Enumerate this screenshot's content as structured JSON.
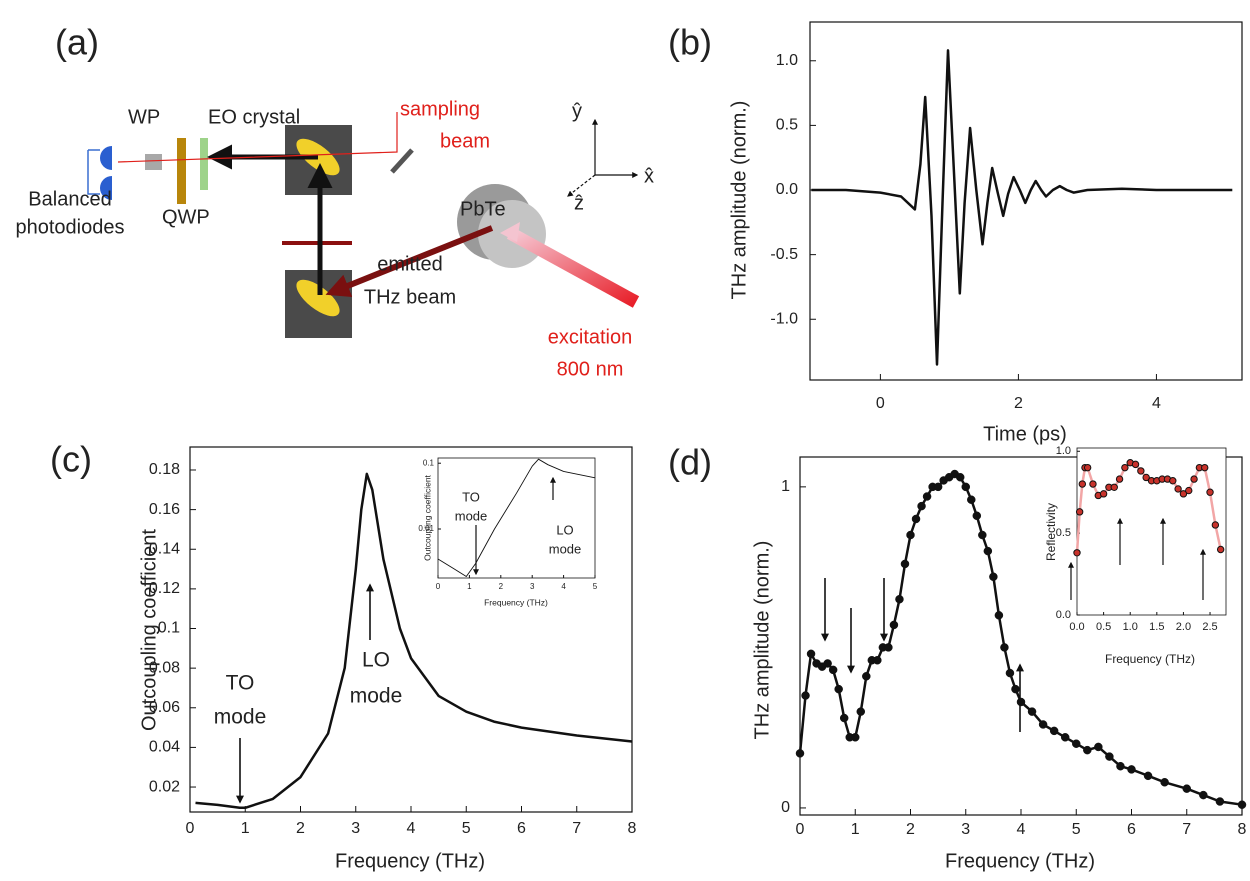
{
  "panel_labels": [
    "(a)",
    "(b)",
    "(c)",
    "(d)"
  ],
  "diagram": {
    "labels": [
      "WP",
      "EO crystal",
      "sampling",
      "beam",
      "Balanced",
      "photodiodes",
      "QWP",
      "PbTe",
      "emitted",
      "THz beam",
      "excitation",
      "800 nm",
      "ŷ",
      "x̂",
      "ẑ"
    ]
  },
  "chart_data": [
    {
      "type": "line",
      "x_label": "Time (ps)",
      "y_label": "THz amplitude (norm.)",
      "color": "#111111",
      "markers": false,
      "x": [
        -1,
        -0.5,
        0,
        0.3,
        0.5,
        0.58,
        0.65,
        0.74,
        0.82,
        0.9,
        0.98,
        1.07,
        1.15,
        1.22,
        1.3,
        1.39,
        1.48,
        1.55,
        1.62,
        1.7,
        1.78,
        1.85,
        1.93,
        2.02,
        2.1,
        2.18,
        2.25,
        2.33,
        2.4,
        2.5,
        2.6,
        2.7,
        2.8,
        3.0,
        3.5,
        4,
        4.5,
        5,
        5.1
      ],
      "values": [
        0,
        0,
        -0.02,
        -0.05,
        -0.15,
        0.2,
        0.72,
        -0.2,
        -1.35,
        -0.1,
        1.08,
        0.1,
        -0.8,
        -0.1,
        0.48,
        0,
        -0.42,
        -0.1,
        0.17,
        -0.02,
        -0.2,
        -0.03,
        0.1,
        0,
        -0.1,
        0,
        0.07,
        0,
        -0.05,
        0,
        0.03,
        0,
        -0.02,
        0,
        0.01,
        0,
        0,
        0,
        0
      ],
      "xlim": [
        -1.02,
        5.24
      ],
      "ylim": [
        -1.47,
        1.3
      ],
      "xticks": [
        0,
        2,
        4
      ],
      "yticks": [
        {
          "value": -1.0,
          "label": "-1.0"
        },
        -0.5,
        {
          "value": 0.0,
          "label": "0.0"
        },
        0.5,
        {
          "value": 1.0,
          "label": "1.0"
        }
      ]
    },
    {
      "type": "line",
      "x_label": "Frequency (THz)",
      "y_label": "Outcoupling coefficient",
      "color": "#111111",
      "markers": false,
      "x": [
        0.1,
        0.5,
        0.9,
        1.0,
        1.5,
        2,
        2.5,
        2.8,
        3.0,
        3.1,
        3.2,
        3.3,
        3.5,
        3.8,
        4,
        4.5,
        5,
        5.5,
        6,
        7,
        8
      ],
      "values": [
        0.012,
        0.011,
        0.0095,
        0.0095,
        0.014,
        0.025,
        0.047,
        0.08,
        0.13,
        0.16,
        0.178,
        0.17,
        0.135,
        0.1,
        0.085,
        0.066,
        0.058,
        0.053,
        0.05,
        0.046,
        0.043
      ],
      "xlim": [
        0,
        8
      ],
      "ylim": [
        0.0074,
        0.1916
      ],
      "xticks": [
        0,
        1,
        2,
        3,
        4,
        5,
        6,
        7,
        8
      ],
      "yticks": [
        0.02,
        0.04,
        0.06,
        0.08,
        0.1,
        0.12,
        0.14,
        0.16,
        0.18
      ],
      "annotations": [
        "TO",
        "mode",
        "LO",
        "mode"
      ]
    },
    {
      "type": "line",
      "x_label": "Frequency (THz)",
      "y_label": "Outcoupling coefficient",
      "color": "#111111",
      "markers": false,
      "log_y": true,
      "x": [
        0,
        0.5,
        0.9,
        1.2,
        1.8,
        2.5,
        3.0,
        3.2,
        3.5,
        4,
        5
      ],
      "values": [
        0.0035,
        0.0025,
        0.0019,
        0.003,
        0.01,
        0.035,
        0.09,
        0.115,
        0.095,
        0.075,
        0.06
      ],
      "xlim": [
        0,
        5
      ],
      "ylim": [
        0.0018,
        0.12
      ],
      "xticks": [
        0,
        1,
        2,
        3,
        4,
        5
      ],
      "yticks": [
        0.01,
        0.1
      ],
      "annotations": [
        "TO",
        "mode",
        "LO",
        "mode"
      ]
    },
    {
      "type": "line",
      "x_label": "Frequency (THz)",
      "y_label": "THz amplitude (norm.)",
      "color": "#111111",
      "markers": true,
      "marker_color": "#111111",
      "x": [
        0,
        0.1,
        0.2,
        0.3,
        0.4,
        0.5,
        0.6,
        0.7,
        0.8,
        0.9,
        1.0,
        1.1,
        1.2,
        1.3,
        1.4,
        1.5,
        1.6,
        1.7,
        1.8,
        1.9,
        2.0,
        2.1,
        2.2,
        2.3,
        2.4,
        2.5,
        2.6,
        2.7,
        2.8,
        2.9,
        3.0,
        3.1,
        3.2,
        3.3,
        3.4,
        3.5,
        3.6,
        3.7,
        3.8,
        3.9,
        4.0,
        4.2,
        4.4,
        4.6,
        4.8,
        5.0,
        5.2,
        5.4,
        5.6,
        5.8,
        6.0,
        6.3,
        6.6,
        7.0,
        7.3,
        7.6,
        8.0
      ],
      "values": [
        0.17,
        0.35,
        0.48,
        0.45,
        0.44,
        0.45,
        0.43,
        0.37,
        0.28,
        0.22,
        0.22,
        0.3,
        0.41,
        0.46,
        0.46,
        0.5,
        0.5,
        0.57,
        0.65,
        0.76,
        0.85,
        0.9,
        0.94,
        0.97,
        1.0,
        1.0,
        1.02,
        1.03,
        1.04,
        1.03,
        1.0,
        0.96,
        0.91,
        0.85,
        0.8,
        0.72,
        0.6,
        0.5,
        0.42,
        0.37,
        0.33,
        0.3,
        0.26,
        0.24,
        0.22,
        0.2,
        0.18,
        0.19,
        0.16,
        0.13,
        0.12,
        0.1,
        0.08,
        0.06,
        0.04,
        0.02,
        0.01
      ],
      "xlim": [
        0,
        8
      ],
      "ylim": [
        -0.022,
        1.093
      ],
      "xticks": [
        0,
        1,
        2,
        3,
        4,
        5,
        6,
        7,
        8
      ],
      "yticks": [
        0,
        1
      ]
    },
    {
      "type": "line",
      "x_label": "Frequency (THz)",
      "y_label": "Reflectivity",
      "color": "#f2a6a6",
      "markers": true,
      "marker_color": "#c8322b",
      "x": [
        0,
        0.05,
        0.1,
        0.15,
        0.2,
        0.3,
        0.4,
        0.5,
        0.6,
        0.7,
        0.8,
        0.9,
        1.0,
        1.1,
        1.2,
        1.3,
        1.4,
        1.5,
        1.6,
        1.7,
        1.8,
        1.9,
        2.0,
        2.1,
        2.2,
        2.3,
        2.4,
        2.5,
        2.6,
        2.7
      ],
      "values": [
        0.38,
        0.63,
        0.8,
        0.9,
        0.9,
        0.8,
        0.73,
        0.74,
        0.78,
        0.78,
        0.83,
        0.9,
        0.93,
        0.92,
        0.88,
        0.84,
        0.82,
        0.82,
        0.83,
        0.83,
        0.82,
        0.77,
        0.74,
        0.76,
        0.83,
        0.9,
        0.9,
        0.75,
        0.55,
        0.4
      ],
      "xlim": [
        0,
        2.8
      ],
      "ylim": [
        0,
        1.02
      ],
      "xticks": [
        {
          "value": 0,
          "label": "0.0"
        },
        0.5,
        {
          "value": 1,
          "label": "1.0"
        },
        1.5,
        {
          "value": 2,
          "label": "2.0"
        },
        2.5
      ],
      "yticks": [
        {
          "value": 0,
          "label": "0.0"
        },
        0.5,
        {
          "value": 1,
          "label": "1.0"
        }
      ]
    }
  ]
}
